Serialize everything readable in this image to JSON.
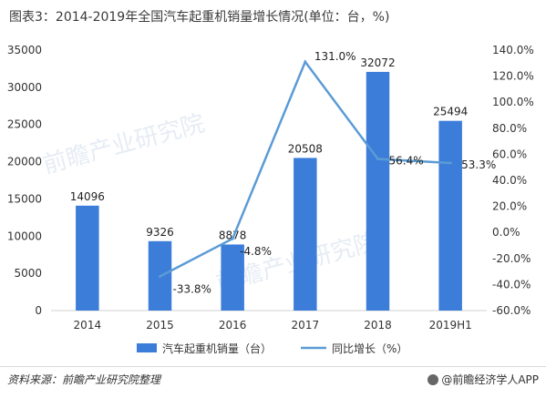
{
  "chart_data": {
    "type": "bar",
    "title": "图表3：2014-2019年全国汽车起重机销量增长情况(单位：台，%)",
    "categories": [
      "2014",
      "2015",
      "2016",
      "2017",
      "2018",
      "2019H1"
    ],
    "series": [
      {
        "name": "汽车起重机销量（台）",
        "type": "bar",
        "axis": "left",
        "values": [
          14096,
          9326,
          8878,
          20508,
          32072,
          25494
        ],
        "labels": [
          "14096",
          "9326",
          "8878",
          "20508",
          "32072",
          "25494"
        ]
      },
      {
        "name": "同比增长（%）",
        "type": "line",
        "axis": "right",
        "values": [
          null,
          -33.8,
          -4.8,
          131.0,
          56.4,
          53.3
        ],
        "labels": [
          "",
          "-33.8%",
          "-4.8%",
          "131.0%",
          "56.4%",
          "53.3%"
        ]
      }
    ],
    "ylim_left": [
      0,
      35000
    ],
    "yticks_left": [
      "0",
      "5000",
      "10000",
      "15000",
      "20000",
      "25000",
      "30000",
      "35000"
    ],
    "ylim_right": [
      -60,
      140
    ],
    "yticks_right": [
      "-60.0%",
      "-40.0%",
      "-20.0%",
      "0.0%",
      "20.0%",
      "40.0%",
      "60.0%",
      "80.0%",
      "100.0%",
      "120.0%",
      "140.0%"
    ],
    "legend_position": "bottom",
    "grid": false,
    "colors": {
      "bar": "#3b7dd8",
      "line": "#5b9bd5",
      "text": "#333333",
      "axis": "#d0d0d0"
    }
  },
  "watermark": "前瞻产业研究院",
  "footer": {
    "source": "资料来源：前瞻产业研究院整理",
    "brand": "@前瞻经济学人APP"
  }
}
